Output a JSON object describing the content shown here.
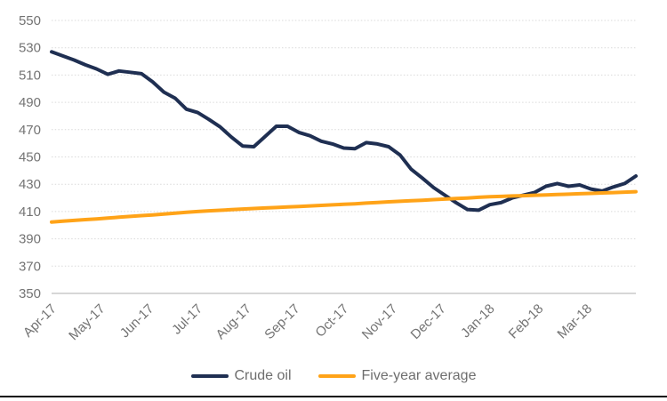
{
  "colors": {
    "crude_oil": "#1F2F52",
    "five_year_average": "#FFA318",
    "gridline": "#D9D9D9",
    "axis_line": "#BFBFBF",
    "tick_label": "#737373",
    "legend_text": "#6E6E6E",
    "bottom_border": "#0B0B0B",
    "background": "#FFFFFF"
  },
  "legend": {
    "items": [
      {
        "label": "Crude oil"
      },
      {
        "label": "Five-year average"
      }
    ]
  },
  "chart_data": {
    "type": "line",
    "title": "",
    "xlabel": "",
    "ylabel": "",
    "grid": "horizontal-dotted",
    "legend_position": "bottom",
    "ylim": [
      350,
      550
    ],
    "y_ticks": [
      350,
      370,
      390,
      410,
      430,
      450,
      470,
      490,
      510,
      530,
      550
    ],
    "x_tick_labels": [
      "Apr-17",
      "May-17",
      "Jun-17",
      "Jul-17",
      "Aug-17",
      "Sep-17",
      "Oct-17",
      "Nov-17",
      "Dec-17",
      "Jan-18",
      "Feb-18",
      "Mar-18"
    ],
    "x_unit": "weekly points, Apr-2017 through Mar-2018",
    "series": [
      {
        "name": "Crude oil",
        "color": "#1F2F52",
        "values": [
          527,
          524,
          521,
          517.5,
          514.5,
          510.5,
          513,
          512,
          511,
          505,
          497.5,
          493,
          485,
          482.5,
          477.5,
          472,
          464.5,
          458,
          457.5,
          465,
          472.5,
          472.5,
          468,
          465.5,
          461.5,
          459.5,
          456.5,
          456,
          460.5,
          459.5,
          457.5,
          451.5,
          441,
          434.5,
          427.5,
          422,
          416.5,
          411.5,
          411,
          415,
          416.5,
          420,
          422,
          424,
          428.5,
          430.5,
          428.5,
          429.5,
          426.5,
          425,
          428,
          430.5,
          436
        ]
      },
      {
        "name": "Five-year average",
        "color": "#FFA318",
        "values": [
          402.3,
          402.9,
          403.5,
          404.1,
          404.6,
          405.2,
          405.8,
          406.4,
          407,
          407.5,
          408.1,
          408.8,
          409.4,
          410,
          410.5,
          410.9,
          411.4,
          411.8,
          412.2,
          412.6,
          412.9,
          413.3,
          413.7,
          414.1,
          414.5,
          414.9,
          415.3,
          415.7,
          416.2,
          416.6,
          417.1,
          417.5,
          417.9,
          418.3,
          418.7,
          419.1,
          419.5,
          419.9,
          420.4,
          420.8,
          421.1,
          421.4,
          421.6,
          421.9,
          422.2,
          422.5,
          422.7,
          423,
          423.3,
          423.6,
          423.9,
          424.2,
          424.5
        ]
      }
    ]
  }
}
